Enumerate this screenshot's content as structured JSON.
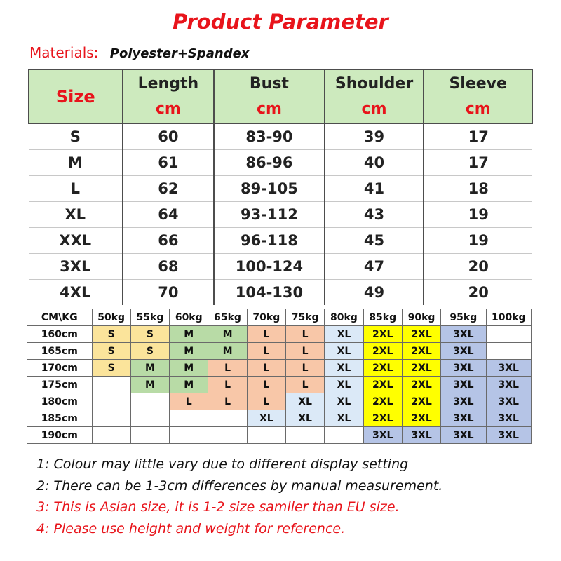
{
  "title": "Product Parameter",
  "materials": {
    "label": "Materials:",
    "value": "Polyester+Spandex"
  },
  "size_table": {
    "size_header": "Size",
    "columns": [
      {
        "name": "Length",
        "unit": "cm"
      },
      {
        "name": "Bust",
        "unit": "cm"
      },
      {
        "name": "Shoulder",
        "unit": "cm"
      },
      {
        "name": "Sleeve",
        "unit": "cm"
      }
    ],
    "rows": [
      [
        "S",
        "60",
        "83-90",
        "39",
        "17"
      ],
      [
        "M",
        "61",
        "86-96",
        "40",
        "17"
      ],
      [
        "L",
        "62",
        "89-105",
        "41",
        "18"
      ],
      [
        "XL",
        "64",
        "93-112",
        "43",
        "19"
      ],
      [
        "XXL",
        "66",
        "96-118",
        "45",
        "19"
      ],
      [
        "3XL",
        "68",
        "100-124",
        "47",
        "20"
      ],
      [
        "4XL",
        "70",
        "104-130",
        "49",
        "20"
      ]
    ]
  },
  "height_weight_chart": {
    "corner": "CM\\KG",
    "weights": [
      "50kg",
      "55kg",
      "60kg",
      "65kg",
      "70kg",
      "75kg",
      "80kg",
      "85kg",
      "90kg",
      "95kg",
      "100kg"
    ],
    "rows": [
      {
        "height": "160cm",
        "cells": [
          "S",
          "S",
          "M",
          "M",
          "L",
          "L",
          "XL",
          "2XL",
          "2XL",
          "3XL",
          ""
        ]
      },
      {
        "height": "165cm",
        "cells": [
          "S",
          "S",
          "M",
          "M",
          "L",
          "L",
          "XL",
          "2XL",
          "2XL",
          "3XL",
          ""
        ]
      },
      {
        "height": "170cm",
        "cells": [
          "S",
          "M",
          "M",
          "L",
          "L",
          "L",
          "XL",
          "2XL",
          "2XL",
          "3XL",
          "3XL"
        ]
      },
      {
        "height": "175cm",
        "cells": [
          "",
          "M",
          "M",
          "L",
          "L",
          "L",
          "XL",
          "2XL",
          "2XL",
          "3XL",
          "3XL"
        ]
      },
      {
        "height": "180cm",
        "cells": [
          "",
          "",
          "L",
          "L",
          "L",
          "XL",
          "XL",
          "2XL",
          "2XL",
          "3XL",
          "3XL"
        ]
      },
      {
        "height": "185cm",
        "cells": [
          "",
          "",
          "",
          "",
          "XL",
          "XL",
          "XL",
          "2XL",
          "2XL",
          "3XL",
          "3XL"
        ]
      },
      {
        "height": "190cm",
        "cells": [
          "",
          "",
          "",
          "",
          "",
          "",
          "",
          "3XL",
          "3XL",
          "3XL",
          "3XL"
        ]
      }
    ],
    "size_colors": {
      "S": "#fbe49b",
      "M": "#b8dba6",
      "L": "#f8c7a8",
      "XL": "#dbe9f7",
      "2XL": "#ffff00",
      "3XL": "#b5c4e6"
    }
  },
  "notes": [
    {
      "text": "1: Colour may little vary due to different display setting",
      "color": "#111111"
    },
    {
      "text": "2: There can be 1-3cm differences by manual measurement.",
      "color": "#111111"
    },
    {
      "text": "3: This is Asian size, it is 1-2 size samller than EU size.",
      "color": "#e8141b"
    },
    {
      "text": "4: Please use height and weight for reference.",
      "color": "#e8141b"
    }
  ]
}
